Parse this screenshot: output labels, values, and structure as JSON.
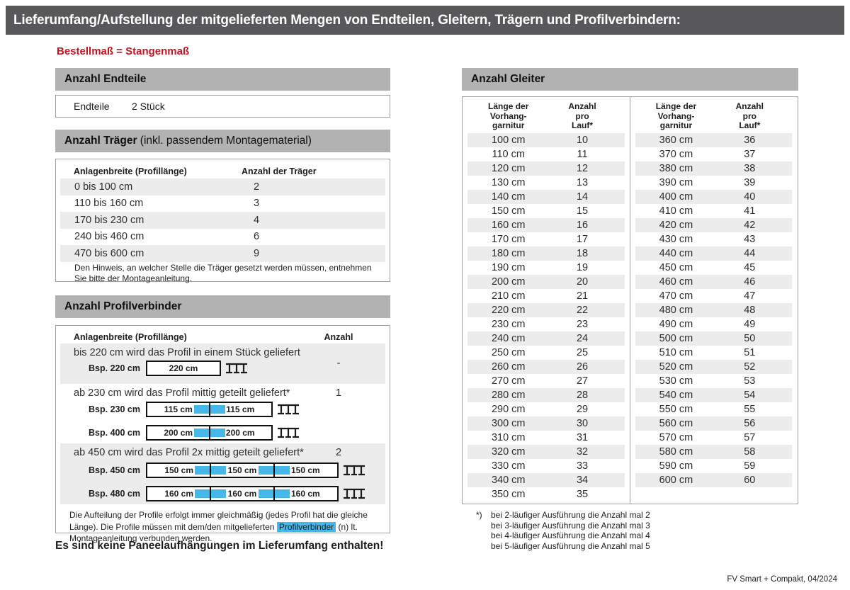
{
  "title": "Lieferumfang/Aufstellung der mitgelieferten Mengen von Endteilen, Gleitern, Trägern und Profilverbindern:",
  "subtitle": "Bestellmaß = Stangenmaß",
  "colors": {
    "accent_red": "#c41321",
    "highlight_blue": "#45b7e8",
    "title_bar_gray": "#58585a",
    "section_bar_gray": "#b2b2b2",
    "stripe_gray": "#ececec"
  },
  "endteile": {
    "header": "Anzahl Endteile",
    "label": "Endteile",
    "value": "2 Stück"
  },
  "traeger": {
    "header_bold": "Anzahl Träger",
    "header_rest": " (inkl. passendem Montagematerial)",
    "col_width": "Anlagenbreite (Profillänge)",
    "col_count": "Anzahl der Träger",
    "rows": [
      [
        "0 bis 100 cm",
        "2"
      ],
      [
        "110 bis 160 cm",
        "3"
      ],
      [
        "170 bis 230 cm",
        "4"
      ],
      [
        "240 bis 460 cm",
        "6"
      ],
      [
        "470 bis 600 cm",
        "9"
      ]
    ],
    "note": "Den Hinweis, an welcher Stelle die Träger gesetzt werden müssen, entnehmen Sie bitte der Montageanleitung."
  },
  "profilverbinder": {
    "header": "Anzahl Profilverbinder",
    "col_width": "Anlagenbreite (Profillänge)",
    "col_count": "Anzahl",
    "sections": [
      {
        "text": "bis 220 cm wird das Profil in einem Stück geliefert",
        "anzahl": "-",
        "examples": [
          {
            "label": "Bsp. 220 cm",
            "segments": [
              "220 cm"
            ]
          }
        ]
      },
      {
        "text": "ab 230 cm wird das Profil mittig geteilt geliefert*",
        "anzahl": "1",
        "examples": [
          {
            "label": "Bsp. 230 cm",
            "segments": [
              "115 cm",
              "115 cm"
            ]
          },
          {
            "label": "Bsp. 400 cm",
            "segments": [
              "200 cm",
              "200 cm"
            ]
          }
        ]
      },
      {
        "text": "ab 450 cm wird das Profil 2x mittig geteilt geliefert*",
        "anzahl": "2",
        "examples": [
          {
            "label": "Bsp. 450 cm",
            "segments": [
              "150 cm",
              "150 cm",
              "150 cm"
            ]
          },
          {
            "label": "Bsp. 480 cm",
            "segments": [
              "160 cm",
              "160 cm",
              "160 cm"
            ]
          }
        ]
      }
    ],
    "note_pre": "Die Aufteilung der Profile erfolgt immer gleichmäßig (jedes Profil hat die gleiche Länge). Die Profile müssen mit dem/den mitgelieferten ",
    "note_highlight": "Profilverbinder",
    "note_post": " (n) lt. Montageanleitung verbunden werden."
  },
  "paneel_note": "Es sind keine Paneelaufhängungen im Lieferumfang enthalten!",
  "gleiter": {
    "header": "Anzahl Gleiter",
    "col_length": [
      "Länge der",
      "Vorhang-",
      "garnitur"
    ],
    "col_count": [
      "Anzahl",
      "pro",
      "Lauf*"
    ],
    "left_rows": [
      [
        "100 cm",
        "10"
      ],
      [
        "110 cm",
        "11"
      ],
      [
        "120 cm",
        "12"
      ],
      [
        "130 cm",
        "13"
      ],
      [
        "140 cm",
        "14"
      ],
      [
        "150 cm",
        "15"
      ],
      [
        "160 cm",
        "16"
      ],
      [
        "170 cm",
        "17"
      ],
      [
        "180 cm",
        "18"
      ],
      [
        "190 cm",
        "19"
      ],
      [
        "200 cm",
        "20"
      ],
      [
        "210 cm",
        "21"
      ],
      [
        "220 cm",
        "22"
      ],
      [
        "230 cm",
        "23"
      ],
      [
        "240 cm",
        "24"
      ],
      [
        "250 cm",
        "25"
      ],
      [
        "260 cm",
        "26"
      ],
      [
        "270 cm",
        "27"
      ],
      [
        "280 cm",
        "28"
      ],
      [
        "290 cm",
        "29"
      ],
      [
        "300 cm",
        "30"
      ],
      [
        "310 cm",
        "31"
      ],
      [
        "320 cm",
        "32"
      ],
      [
        "330 cm",
        "33"
      ],
      [
        "340 cm",
        "34"
      ],
      [
        "350 cm",
        "35"
      ]
    ],
    "right_rows": [
      [
        "360 cm",
        "36"
      ],
      [
        "370 cm",
        "37"
      ],
      [
        "380 cm",
        "38"
      ],
      [
        "390 cm",
        "39"
      ],
      [
        "400 cm",
        "40"
      ],
      [
        "410 cm",
        "41"
      ],
      [
        "420 cm",
        "42"
      ],
      [
        "430 cm",
        "43"
      ],
      [
        "440 cm",
        "44"
      ],
      [
        "450 cm",
        "45"
      ],
      [
        "460 cm",
        "46"
      ],
      [
        "470 cm",
        "47"
      ],
      [
        "480 cm",
        "48"
      ],
      [
        "490 cm",
        "49"
      ],
      [
        "500 cm",
        "50"
      ],
      [
        "510 cm",
        "51"
      ],
      [
        "520 cm",
        "52"
      ],
      [
        "530 cm",
        "53"
      ],
      [
        "540 cm",
        "54"
      ],
      [
        "550 cm",
        "55"
      ],
      [
        "560 cm",
        "56"
      ],
      [
        "570 cm",
        "57"
      ],
      [
        "580 cm",
        "58"
      ],
      [
        "590 cm",
        "59"
      ],
      [
        "600 cm",
        "60"
      ]
    ]
  },
  "footnotes": {
    "marker": "*)",
    "lines": [
      "bei 2-läufiger Ausführung die Anzahl mal 2",
      "bei 3-läufiger Ausführung die Anzahl mal 3",
      "bei 4-läufiger Ausführung die Anzahl mal 4",
      "bei 5-läufiger Ausführung die Anzahl mal 5"
    ]
  },
  "footer": "FV Smart + Compakt, 04/2024"
}
